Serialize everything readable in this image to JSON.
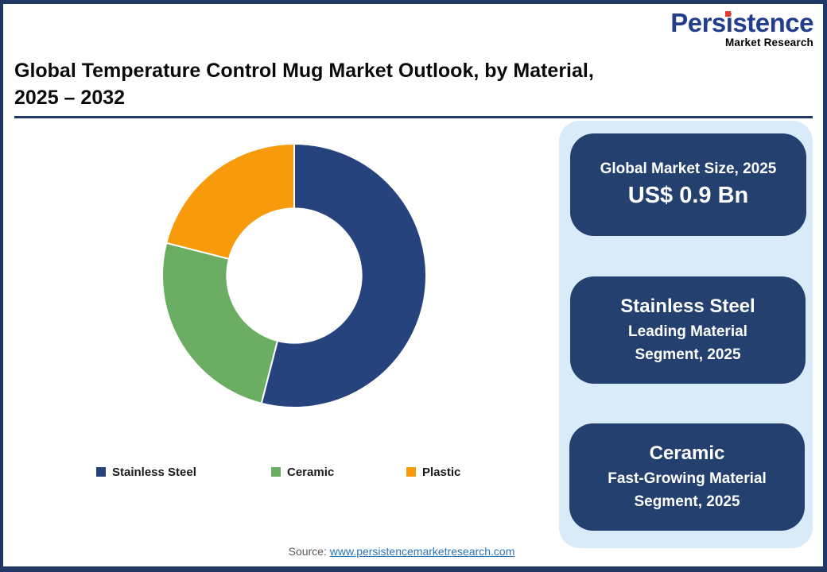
{
  "logo": {
    "brand": "Persistence",
    "tagline": "Market Research",
    "brand_color": "#233E8C",
    "dot_color": "#E63A2E"
  },
  "header": {
    "title_line1": "Global Temperature Control Mug Market Outlook, by Material,",
    "title_line2": "2025 – 2032"
  },
  "chart_data": {
    "type": "pie",
    "subtype": "donut",
    "title": "Global Temperature Control Mug Market Outlook, by Material, 2025 – 2032",
    "categories": [
      "Stainless Steel",
      "Ceramic",
      "Plastic"
    ],
    "values": [
      54,
      25,
      21
    ],
    "values_note": "percent share estimated from arc angles; no data labels shown on chart",
    "colors": [
      "#27437E",
      "#6BAD62",
      "#F79A0B"
    ],
    "start_angle_deg": 0,
    "direction": "clockwise",
    "inner_radius_ratio": 0.51,
    "legend_position": "bottom"
  },
  "legend": {
    "items": [
      {
        "label": "Stainless Steel",
        "color": "#27437E"
      },
      {
        "label": "Ceramic",
        "color": "#6BAD62"
      },
      {
        "label": "Plastic",
        "color": "#F79A0B"
      }
    ]
  },
  "sidebar": {
    "panel_bg": "#D9EBF8",
    "card_bg": "#24406E",
    "cards": [
      {
        "title": "Global Market Size, 2025",
        "value": "US$ 0.9 Bn"
      },
      {
        "title": "Stainless Steel",
        "subtitle": "Leading Material Segment, 2025"
      },
      {
        "title": "Ceramic",
        "subtitle": "Fast-Growing Material Segment, 2025"
      }
    ]
  },
  "footer": {
    "source_label": "Source:",
    "source_link": "www.persistencemarketresearch.com"
  },
  "colors": {
    "frame_navy": "#1F3864",
    "title_rule": "#1F3864",
    "link_blue": "#2E75B6"
  }
}
